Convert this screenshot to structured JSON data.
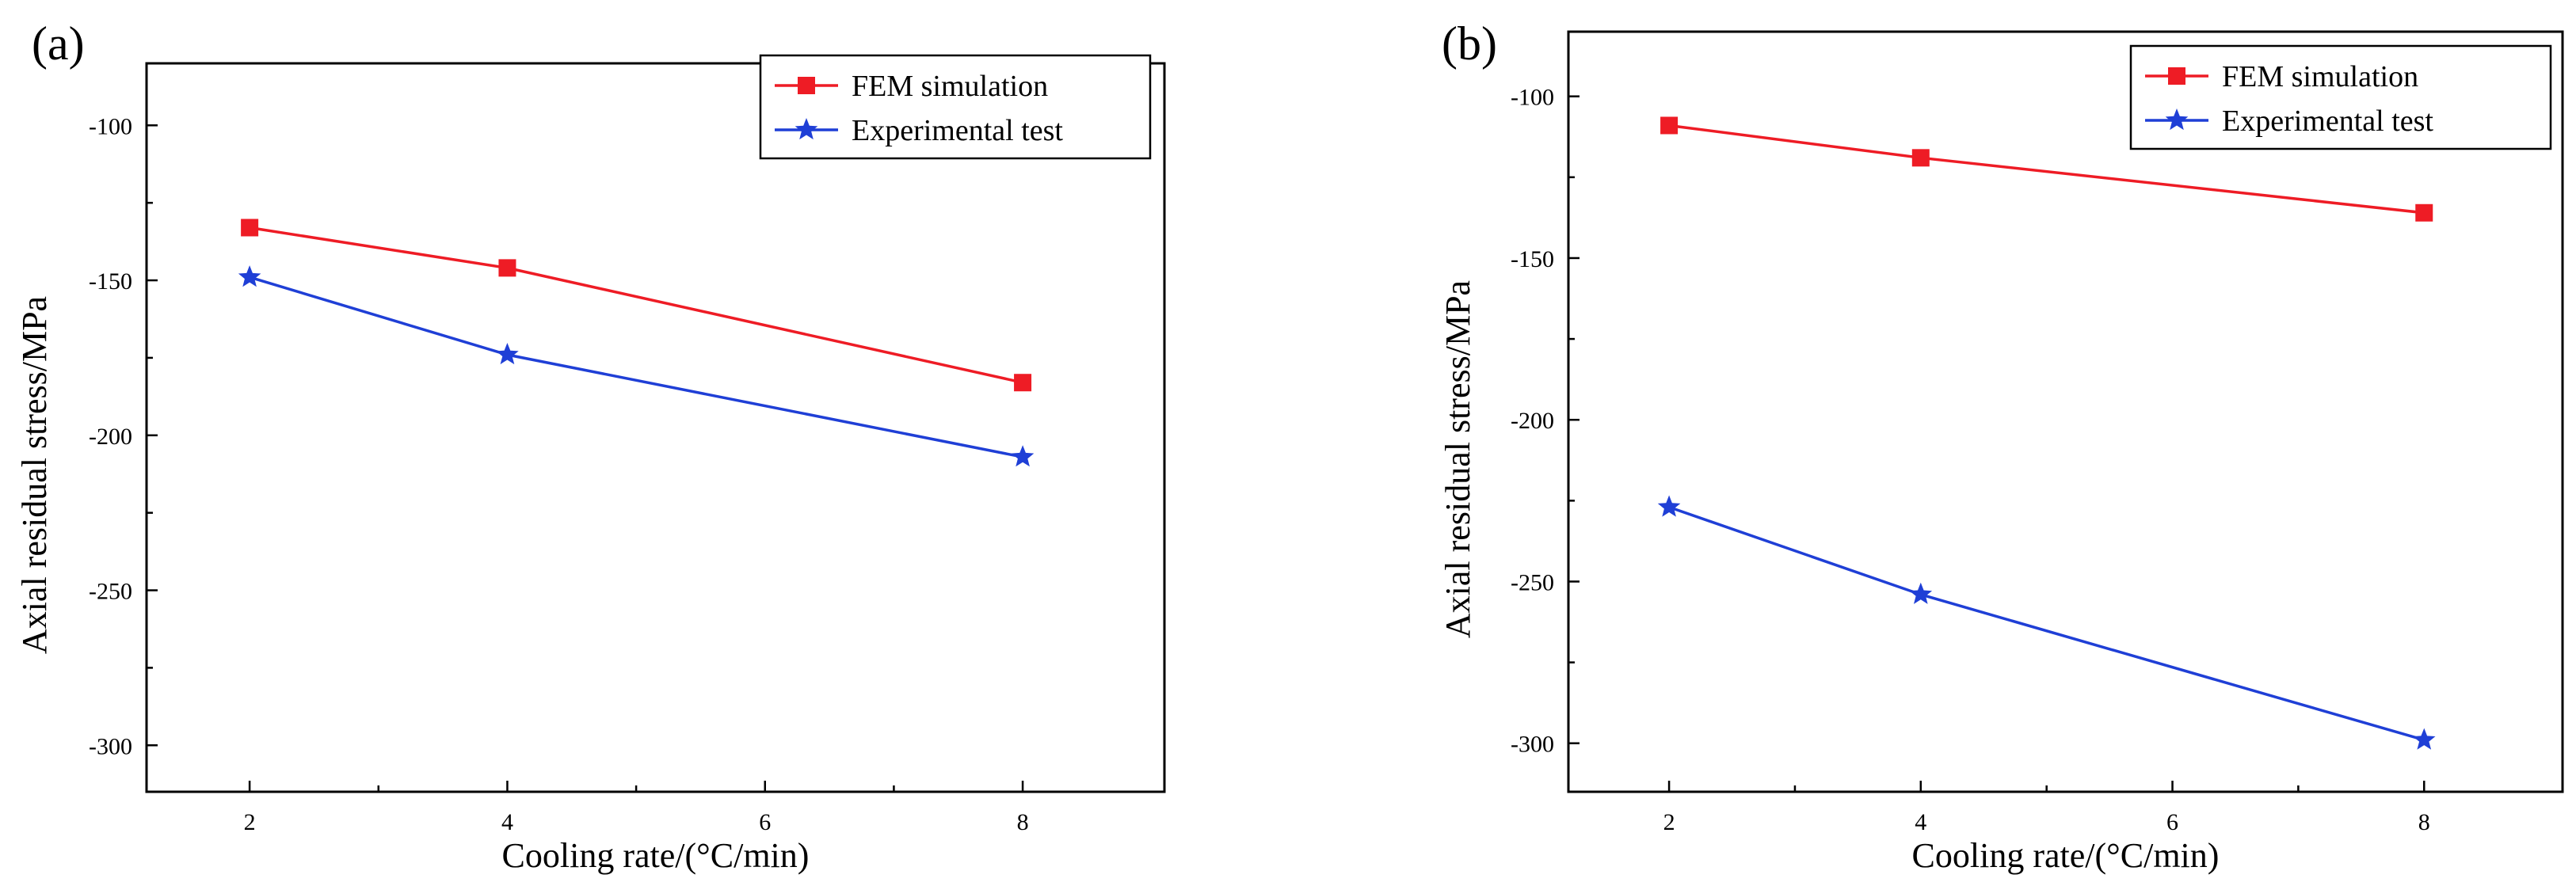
{
  "chart_data": [
    {
      "type": "line",
      "panel_label": "(a)",
      "xlabel": "Cooling rate/(°C/min)",
      "ylabel": "Axial residual stress/MPa",
      "x": [
        2,
        4,
        8
      ],
      "xticks": [
        2,
        4,
        6,
        8
      ],
      "xlim": [
        1.2,
        9.1
      ],
      "ylim": [
        -315,
        -80
      ],
      "yticks": [
        -100,
        -150,
        -200,
        -250,
        -300
      ],
      "grid": false,
      "legend_position": "top-right",
      "series": [
        {
          "name": "FEM simulation",
          "values": [
            -133,
            -146,
            -183
          ],
          "color": "#ee1c25",
          "marker": "square"
        },
        {
          "name": "Experimental test",
          "values": [
            -149,
            -174,
            -207
          ],
          "color": "#1f3fd6",
          "marker": "star"
        }
      ]
    },
    {
      "type": "line",
      "panel_label": "(b)",
      "xlabel": "Cooling rate/(°C/min)",
      "ylabel": "Axial residual stress/MPa",
      "x": [
        2,
        4,
        8
      ],
      "xticks": [
        2,
        4,
        6,
        8
      ],
      "xlim": [
        1.2,
        9.1
      ],
      "ylim": [
        -315,
        -80
      ],
      "yticks": [
        -100,
        -150,
        -200,
        -250,
        -300
      ],
      "grid": false,
      "legend_position": "top-right",
      "series": [
        {
          "name": "FEM simulation",
          "values": [
            -109,
            -119,
            -136
          ],
          "color": "#ee1c25",
          "marker": "square"
        },
        {
          "name": "Experimental test",
          "values": [
            -227,
            -254,
            -299
          ],
          "color": "#1f3fd6",
          "marker": "star"
        }
      ]
    }
  ]
}
